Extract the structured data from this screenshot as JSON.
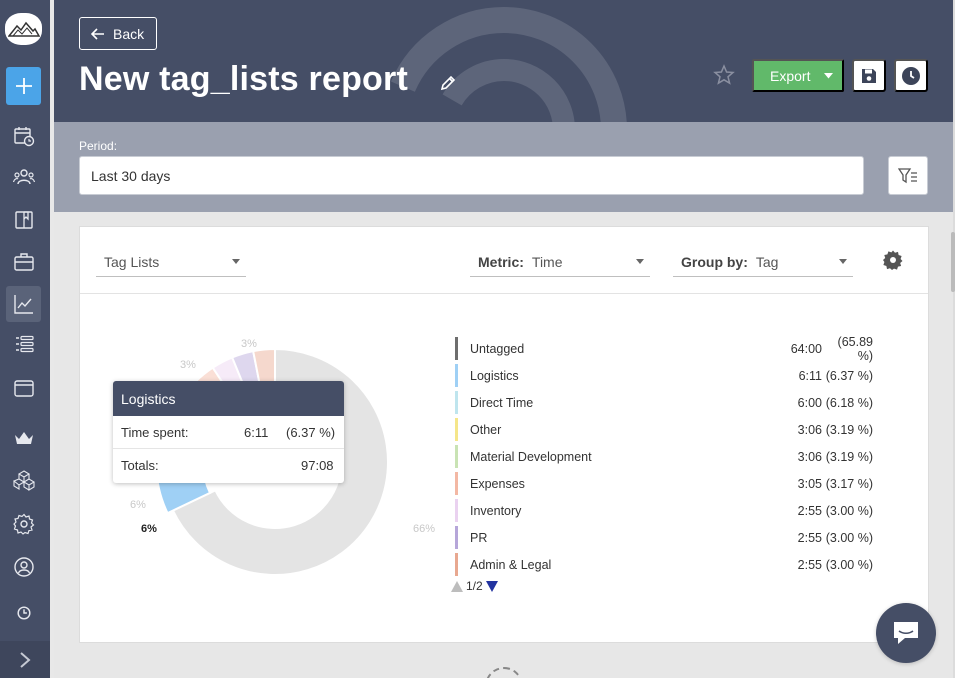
{
  "sidebar": {
    "logo": "mountain-logo",
    "icons": [
      "plus-icon",
      "calendar-clock-icon",
      "users-icon",
      "book-icon",
      "briefcase-icon",
      "chart-icon",
      "list-icon",
      "wallet-icon",
      "crown-icon",
      "cubes-icon",
      "gear-icon",
      "user-circle-icon",
      "history-icon"
    ],
    "expand_icon": "chevron-right-icon"
  },
  "header": {
    "back_label": "Back",
    "title": "New tag_lists report",
    "export_label": "Export",
    "colors": {
      "bg": "#454e66",
      "export": "#61b96a"
    }
  },
  "period": {
    "label": "Period:",
    "value": "Last 30 days"
  },
  "toolbar": {
    "report_type": "Tag Lists",
    "metric_label": "Metric:",
    "metric_value": "Time",
    "group_label": "Group by:",
    "group_value": "Tag"
  },
  "tooltip": {
    "title": "Logistics",
    "time_label": "Time spent:",
    "time_value": "6:11",
    "time_pct": "(6.37 %)",
    "totals_label": "Totals:",
    "totals_value": "97:08"
  },
  "chart_data": {
    "type": "pie",
    "donut": true,
    "slice_labels": [
      "66%",
      "6%",
      "6%",
      "3%",
      "3%",
      "3%"
    ],
    "highlighted_label": "6%",
    "series": [
      {
        "name": "Untagged",
        "time": "64:00",
        "percent": 65.89,
        "color": "#6e6e6e"
      },
      {
        "name": "Logistics",
        "time": "6:11",
        "percent": 6.37,
        "color": "#9fd0f5"
      },
      {
        "name": "Direct Time",
        "time": "6:00",
        "percent": 6.18,
        "color": "#bfe5ee"
      },
      {
        "name": "Other",
        "time": "3:06",
        "percent": 3.19,
        "color": "#f5e68a"
      },
      {
        "name": "Material Development",
        "time": "3:06",
        "percent": 3.19,
        "color": "#c9e3b4"
      },
      {
        "name": "Expenses",
        "time": "3:05",
        "percent": 3.17,
        "color": "#f3b8a4"
      },
      {
        "name": "Inventory",
        "time": "2:55",
        "percent": 3.0,
        "color": "#ead2f0"
      },
      {
        "name": "PR",
        "time": "2:55",
        "percent": 3.0,
        "color": "#b6a6d9"
      },
      {
        "name": "Admin & Legal",
        "time": "2:55",
        "percent": 3.0,
        "color": "#e8a890"
      }
    ],
    "legend_rows": [
      {
        "name": "Untagged",
        "time": "64:00",
        "pct": "(65.89 %)",
        "color": "#6e6e6e"
      },
      {
        "name": "Logistics",
        "time": "6:11",
        "pct": "(6.37 %)",
        "color": "#9fd0f5"
      },
      {
        "name": "Direct Time",
        "time": "6:00",
        "pct": "(6.18 %)",
        "color": "#bfe5ee"
      },
      {
        "name": "Other",
        "time": "3:06",
        "pct": "(3.19 %)",
        "color": "#f5e68a"
      },
      {
        "name": "Material Development",
        "time": "3:06",
        "pct": "(3.19 %)",
        "color": "#c9e3b4"
      },
      {
        "name": "Expenses",
        "time": "3:05",
        "pct": "(3.17 %)",
        "color": "#f3b8a4"
      },
      {
        "name": "Inventory",
        "time": "2:55",
        "pct": "(3.00 %)",
        "color": "#ead2f0"
      },
      {
        "name": "PR",
        "time": "2:55",
        "pct": "(3.00 %)",
        "color": "#b6a6d9"
      },
      {
        "name": "Admin & Legal",
        "time": "2:55",
        "pct": "(3.00 %)",
        "color": "#e8a890"
      }
    ],
    "pager": "1/2"
  }
}
